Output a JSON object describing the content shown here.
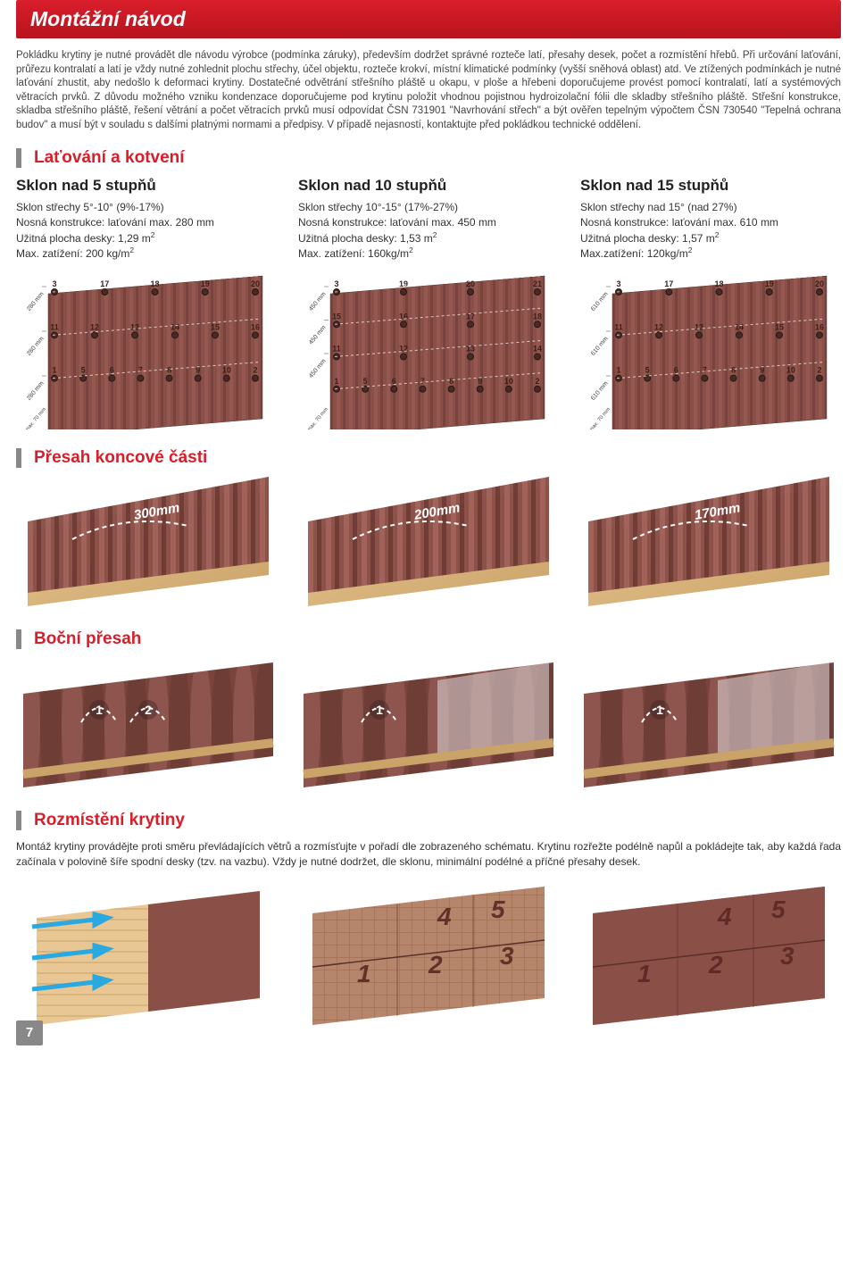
{
  "title": "Montážní návod",
  "intro": "Pokládku krytiny je nutné provádět dle návodu výrobce (podmínka záruky), především dodržet správné rozteče latí, přesahy desek, počet a rozmístění hřebů. Při určování laťování, průřezu kontralatí a latí je vždy nutné zohlednit plochu střechy, účel objektu, rozteče krokví, místní klimatické podmínky (vyšší sněhová oblast) atd. Ve ztížených podmínkách je nutné laťování zhustit, aby nedošlo k deformaci krytiny. Dostatečné odvětrání střešního pláště u okapu, v ploše a hřebeni doporučujeme provést pomocí kontralatí, latí a systémových větracích prvků. Z důvodu možného vzniku kondenzace doporučujeme pod krytinu položit vhodnou pojistnou hydroizolační fólii dle skladby střešního pláště. Střešní konstrukce, skladba střešního pláště, řešení větrání a počet větracích prvků musí odpovídat ČSN 731901 \"Navrhování střech\" a být ověřen tepelným výpočtem ČSN 730540 \"Tepelná ochrana budov\" a musí být v souladu s dalšími platnými normami a předpisy. V případě nejasností, kontaktujte před pokládkou technické oddělení.",
  "section1": {
    "heading": "Laťování a kotvení",
    "slopes": [
      {
        "title": "Sklon nad 5 stupňů",
        "lines": [
          "Sklon střechy 5°-10° (9%-17%)",
          "Nosná konstrukce: laťování max. 280 mm",
          "Užitná plocha desky: 1,29 m²",
          "Max. zatížení: 200 kg/m²"
        ],
        "batten_spacing": "280 mm",
        "eave_max": "max. 70 mm",
        "row_labels": [
          [
            "3",
            "17",
            "18",
            "19",
            "20"
          ],
          [
            "11",
            "12",
            "13",
            "14",
            "15",
            "16"
          ],
          [
            "1",
            "5",
            "6",
            "7",
            "8",
            "9",
            "10",
            "2"
          ]
        ],
        "color_roof": "#8a5048"
      },
      {
        "title": "Sklon nad 10 stupňů",
        "lines": [
          "Sklon střechy 10°-15° (17%-27%)",
          "Nosná konstrukce: laťování max. 450 mm",
          "Užitná plocha desky: 1,53 m²",
          "Max. zatížení: 160kg/m²"
        ],
        "batten_spacing": "450 mm",
        "eave_max": "max. 70 mm",
        "row_labels": [
          [
            "3",
            "19",
            "20",
            "21"
          ],
          [
            "15",
            "16",
            "17",
            "18"
          ],
          [
            "11",
            "12",
            "13",
            "14"
          ],
          [
            "1",
            "5",
            "6",
            "7",
            "8",
            "9",
            "10",
            "2"
          ]
        ],
        "color_roof": "#8a5048"
      },
      {
        "title": "Sklon nad 15 stupňů",
        "lines": [
          "Sklon střechy nad 15° (nad 27%)",
          "Nosná konstrukce: laťování max. 610 mm",
          "Užitná plocha desky: 1,57 m²",
          "Max.zatížení: 120kg/m²"
        ],
        "batten_spacing": "610 mm",
        "eave_max": "max. 70 mm",
        "row_labels": [
          [
            "3",
            "17",
            "18",
            "19",
            "20"
          ],
          [
            "11",
            "12",
            "13",
            "14",
            "15",
            "16"
          ],
          [
            "1",
            "5",
            "6",
            "7",
            "8",
            "9",
            "10",
            "2"
          ]
        ],
        "color_roof": "#8a5048"
      }
    ]
  },
  "section2": {
    "heading": "Přesah koncové části",
    "overhangs": [
      "300mm",
      "200mm",
      "170mm"
    ]
  },
  "section3": {
    "heading": "Boční přesah",
    "waves": [
      [
        "1",
        "2"
      ],
      [
        "1"
      ],
      [
        "1"
      ]
    ]
  },
  "section4": {
    "heading": "Rozmístění krytiny",
    "text": "Montáž krytiny provádějte proti směru převládajících větrů a rozmísťujte v pořadí dle zobrazeného schématu. Krytinu rozřežte podélně napůl a pokládejte tak, aby každá řada začínala v polovině šíře spodní desky (tzv. na vazbu). Vždy je nutné dodržet, dle sklonu, minimální podélné a příčné přesahy desek.",
    "panels": [
      {
        "nums": [],
        "arrows": true
      },
      {
        "nums": [
          "4",
          "5",
          "1",
          "2",
          "3"
        ],
        "arrows": false
      },
      {
        "nums": [
          "4",
          "5",
          "1",
          "2",
          "3"
        ],
        "arrows": false
      }
    ]
  },
  "page_number": "7",
  "colors": {
    "accent_red": "#d91e2a",
    "roof_red": "#8a5048",
    "roof_dark": "#6d3a33",
    "wood": "#d4a86a",
    "grey": "#888"
  }
}
